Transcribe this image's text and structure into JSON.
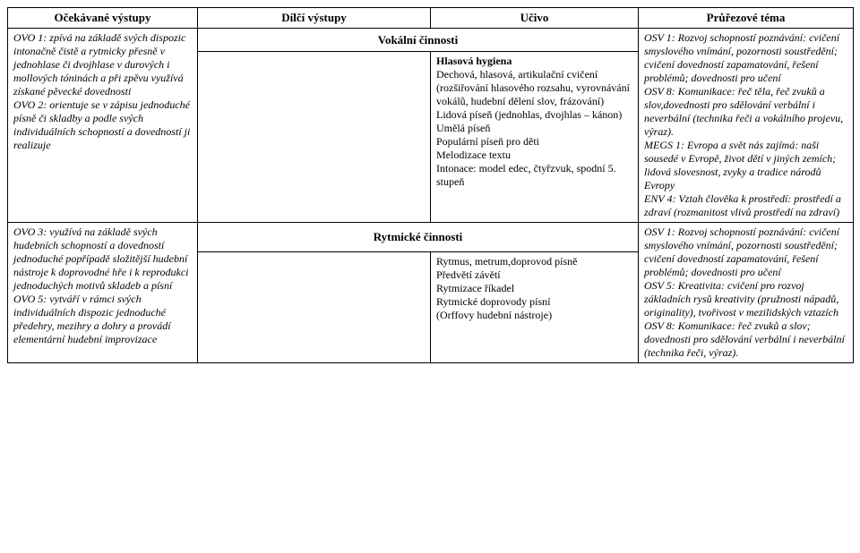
{
  "headers": {
    "c1": "Očekávané výstupy",
    "c2": "Dílčí výstupy",
    "c3": "Učivo",
    "c4": "Průřezové téma"
  },
  "sections": {
    "vokalni": "Vokální činnosti",
    "rytmicke": "Rytmické činnosti"
  },
  "row1": {
    "col1": "OVO 1: zpívá na základě svých dispozic intonačně čistě a rytmicky přesně v jednohlase či dvojhlase v durových i mollových tóninách a při zpěvu využívá získané pěvecké dovednosti\nOVO 2: orientuje se v zápisu jednoduché písně či skladby a podle svých individuálních schopností a dovedností ji realizuje",
    "col2": "",
    "col3_head": "Hlasová hygiena",
    "col3_body": "Dechová, hlasová, artikulační cvičení (rozšiřování hlasového rozsahu, vyrovnávání vokálů, hudební dělení slov, frázování)\nLidová píseň (jednohlas, dvojhlas – kánon)\nUmělá píseň\nPopulární píseň pro děti\nMelodizace textu\nIntonace: model edec, čtyřzvuk, spodní 5. stupeň",
    "col4_a": "OSV 1: Rozvoj schopností poznávání: cvičení smyslového vnímání, pozornosti soustředění; cvičení dovedností zapamatování, řešení problémů; dovednosti pro učení\nOSV 8: Komunikace: řeč těla, řeč zvuků a slov,dovednosti pro sdělování verbální i neverbální (technika řeči a vokálního projevu, výraz).\nMEGS 1: Evropa a svět nás zajímá: naši sousedé v Evropě, život dětí v jiných zemích; lidová slovesnost, zvyky a tradice národů Evropy\nENV 4: Vztah člověka k prostředí: prostředí a zdraví (rozmanitost vlivů prostředí na zdraví)"
  },
  "row2": {
    "col1": "OVO 3: využívá na základě svých hudebních schopností a dovedností jednoduché popřípadě složitější hudební nástroje k doprovodné hře i k reprodukci jednoduchých motivů skladeb a písní\nOVO 5: vytváří v rámci svých individuálních dispozic jednoduché předehry, mezihry a dohry a provádí elementární hudební improvizace",
    "col2": "",
    "col3": "Rytmus, metrum,doprovod písně\nPředvětí závětí\nRytmizace říkadel\nRytmické doprovody písní\n(Orffovy hudební nástroje)",
    "col4": "OSV 1: Rozvoj schopností poznávání: cvičení smyslového vnímání, pozornosti soustředění; cvičení dovedností zapamatování, řešení problémů; dovednosti pro učení\nOSV 5: Kreativita: cvičení pro rozvoj základních rysů kreativity (pružnosti nápadů, originality), tvořivost v mezilidských vztazích\nOSV 8: Komunikace: řeč zvuků a slov; dovednosti pro sdělování verbální i neverbální (technika řeči, výraz)."
  }
}
